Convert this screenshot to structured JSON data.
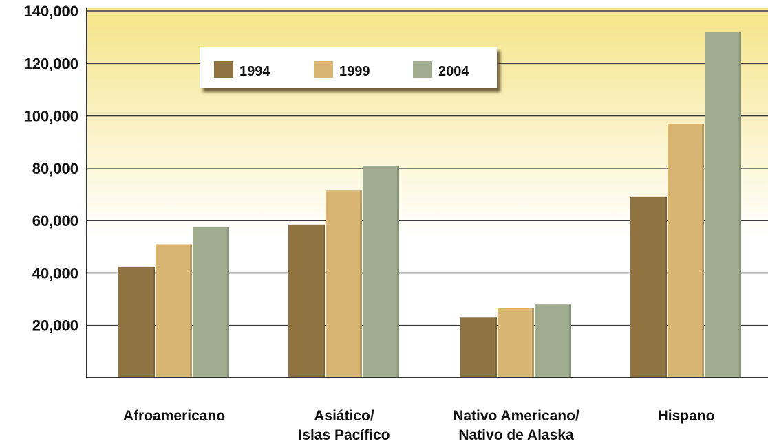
{
  "chart_data": {
    "type": "bar",
    "categories": [
      [
        "Afroamericano"
      ],
      [
        "Asiático/",
        "Islas Pacífico"
      ],
      [
        "Nativo Americano/",
        "Nativo de Alaska"
      ],
      [
        "Hispano"
      ]
    ],
    "series": [
      {
        "name": "1994",
        "color": "#8f7442",
        "values": [
          42500,
          58500,
          23000,
          69000
        ]
      },
      {
        "name": "1999",
        "color": "#d8b572",
        "values": [
          51000,
          71500,
          26500,
          97000
        ]
      },
      {
        "name": "2004",
        "color": "#9fac8e",
        "values": [
          57500,
          81000,
          28000,
          132000
        ]
      }
    ],
    "yticks": [
      20000,
      40000,
      60000,
      80000,
      100000,
      120000,
      140000
    ],
    "ytick_labels": [
      "20,000",
      "40,000",
      "60,000",
      "80,000",
      "100,000",
      "120,000",
      "140,000"
    ],
    "ylim": [
      0,
      140000
    ],
    "grid": true,
    "legend_position": "top-left",
    "background_gradient": [
      "#ffffff",
      "#f5e488"
    ]
  }
}
